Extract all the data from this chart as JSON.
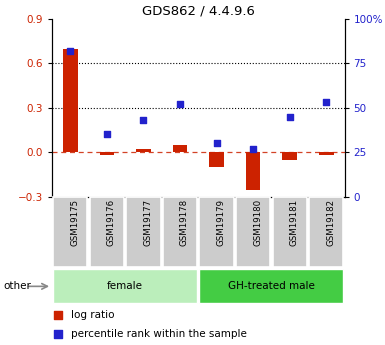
{
  "title": "GDS862 / 4.4.9.6",
  "samples": [
    "GSM19175",
    "GSM19176",
    "GSM19177",
    "GSM19178",
    "GSM19179",
    "GSM19180",
    "GSM19181",
    "GSM19182"
  ],
  "log_ratio": [
    0.7,
    -0.018,
    0.022,
    0.052,
    -0.1,
    -0.255,
    -0.052,
    -0.018
  ],
  "percentile_rank": [
    82,
    35,
    43,
    52,
    30,
    27,
    45,
    53
  ],
  "ylim_left": [
    -0.3,
    0.9
  ],
  "ylim_right": [
    0,
    100
  ],
  "yticks_left": [
    -0.3,
    0.0,
    0.3,
    0.6,
    0.9
  ],
  "yticks_right": [
    0,
    25,
    50,
    75,
    100
  ],
  "hlines_dotted": [
    0.3,
    0.6
  ],
  "hline_dashed": 0.0,
  "bar_color": "#cc2200",
  "square_color": "#2222cc",
  "groups": [
    {
      "label": "female",
      "indices": [
        0,
        1,
        2,
        3
      ],
      "color": "#bbeebb"
    },
    {
      "label": "GH-treated male",
      "indices": [
        4,
        5,
        6,
        7
      ],
      "color": "#44cc44"
    }
  ],
  "other_label": "other",
  "legend_log_ratio": "log ratio",
  "legend_percentile": "percentile rank within the sample",
  "bg_color": "#ffffff",
  "tick_label_color_left": "#cc2200",
  "tick_label_color_right": "#2222cc",
  "bar_width": 0.4,
  "square_size": 25
}
